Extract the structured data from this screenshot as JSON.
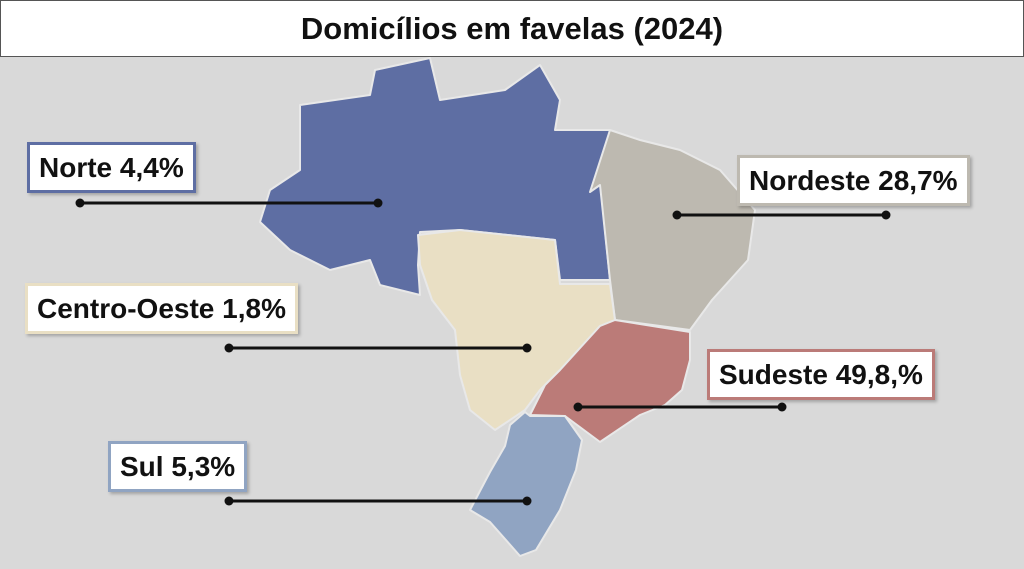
{
  "title": "Domicílios em favelas (2024)",
  "regions": [
    {
      "label": "Norte 4,4%",
      "color": "#5e6ea3"
    },
    {
      "label": "Nordeste 28,7%",
      "color": "#bdb9b0"
    },
    {
      "label": "Centro-Oeste 1,8%",
      "color": "#e9dfc4"
    },
    {
      "label": "Sudeste 49,8,%",
      "color": "#bb7b78"
    },
    {
      "label": "Sul 5,3%",
      "color": "#90a4c2"
    }
  ]
}
